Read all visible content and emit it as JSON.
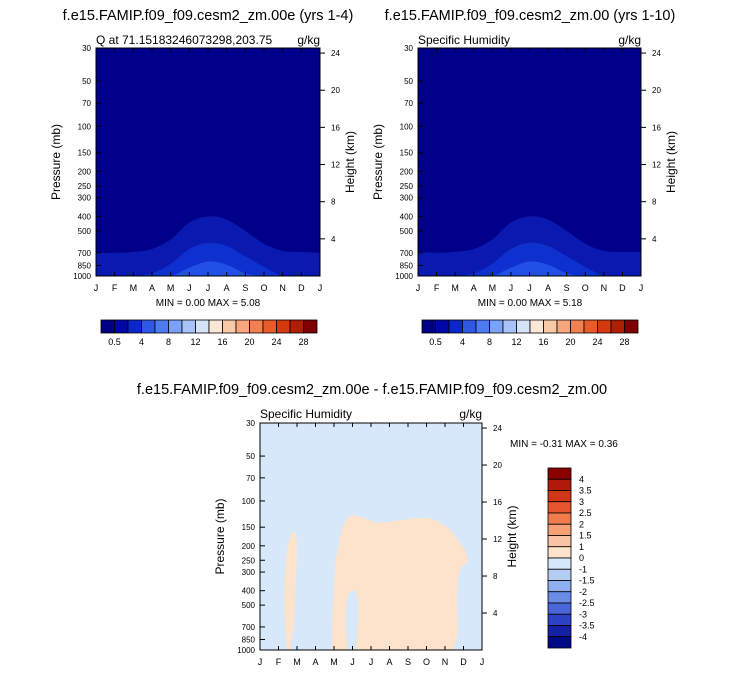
{
  "chart_data": [
    {
      "type": "heatmap",
      "title": "f.e15.FAMIP.f09_f09.cesm2_zm.00e (yrs 1-4)",
      "left_label": "Q at 71.15183246073298,203.75",
      "units": "g/kg",
      "ylabel": "Pressure (mb)",
      "ylabel_right": "Height (km)",
      "stats": "MIN =   0.00 MAX =   5.08",
      "x_ticks": [
        "J",
        "F",
        "M",
        "A",
        "M",
        "J",
        "J",
        "A",
        "S",
        "O",
        "N",
        "D",
        "J"
      ],
      "y_ticks": [
        30,
        50,
        70,
        100,
        150,
        200,
        250,
        300,
        400,
        500,
        700,
        850,
        1000
      ],
      "y_ticks_right": [
        24,
        20,
        16,
        12,
        8,
        4
      ],
      "ylim": [
        1000,
        30
      ],
      "colorbar_labels": [
        "0.5",
        "4",
        "8",
        "12",
        "16",
        "20",
        "24",
        "28"
      ],
      "colorbar_colors": [
        "#000085",
        "#0007a6",
        "#0a27cc",
        "#2e57e6",
        "#4d7cf2",
        "#7aa2f7",
        "#a8c3f7",
        "#d5e3f7",
        "#fbe7d5",
        "#f8c8a7",
        "#f6a57c",
        "#f3804f",
        "#ea5b2a",
        "#d43a10",
        "#b01e04",
        "#7f0000"
      ],
      "contours_from_surface": [
        {
          "level": "0.5",
          "top_mb": [
            700,
            700,
            690,
            660,
            570,
            440,
            400,
            420,
            500,
            610,
            680,
            690,
            700
          ]
        },
        {
          "level": "1",
          "top_mb": [
            1000,
            1000,
            1000,
            960,
            830,
            660,
            600,
            630,
            740,
            870,
            1000,
            1000,
            1000
          ]
        },
        {
          "level": "2",
          "top_mb": [
            1000,
            1000,
            1000,
            1000,
            1000,
            880,
            800,
            840,
            960,
            1000,
            1000,
            1000,
            1000
          ]
        }
      ]
    },
    {
      "type": "heatmap",
      "title": "f.e15.FAMIP.f09_f09.cesm2_zm.00 (yrs 1-10)",
      "left_label": "Specific Humidity",
      "units": "g/kg",
      "ylabel": "Pressure (mb)",
      "ylabel_right": "Height (km)",
      "stats": "MIN =   0.00 MAX =   5.18",
      "x_ticks": [
        "J",
        "F",
        "M",
        "A",
        "M",
        "J",
        "J",
        "A",
        "S",
        "O",
        "N",
        "D",
        "J"
      ],
      "y_ticks": [
        30,
        50,
        70,
        100,
        150,
        200,
        250,
        300,
        400,
        500,
        700,
        850,
        1000
      ],
      "y_ticks_right": [
        24,
        20,
        16,
        12,
        8,
        4
      ],
      "ylim": [
        1000,
        30
      ],
      "colorbar_labels": [
        "0.5",
        "4",
        "8",
        "12",
        "16",
        "20",
        "24",
        "28"
      ],
      "colorbar_colors": [
        "#000085",
        "#0007a6",
        "#0a27cc",
        "#2e57e6",
        "#4d7cf2",
        "#7aa2f7",
        "#a8c3f7",
        "#d5e3f7",
        "#fbe7d5",
        "#f8c8a7",
        "#f6a57c",
        "#f3804f",
        "#ea5b2a",
        "#d43a10",
        "#b01e04",
        "#7f0000"
      ],
      "contours_from_surface": [
        {
          "level": "0.5",
          "top_mb": [
            690,
            700,
            690,
            660,
            570,
            440,
            400,
            420,
            500,
            610,
            680,
            690,
            690
          ]
        },
        {
          "level": "1",
          "top_mb": [
            1000,
            1000,
            1000,
            960,
            830,
            660,
            600,
            630,
            740,
            870,
            1000,
            1000,
            1000
          ]
        },
        {
          "level": "2",
          "top_mb": [
            1000,
            1000,
            1000,
            1000,
            1000,
            880,
            800,
            840,
            960,
            1000,
            1000,
            1000,
            1000
          ]
        }
      ]
    },
    {
      "type": "heatmap",
      "title": "f.e15.FAMIP.f09_f09.cesm2_zm.00e - f.e15.FAMIP.f09_f09.cesm2_zm.00",
      "left_label": "Specific Humidity",
      "units": "g/kg",
      "ylabel": "Pressure (mb)",
      "ylabel_right": "Height (km)",
      "stats": "MIN =  -0.31 MAX =   0.36",
      "x_ticks": [
        "J",
        "F",
        "M",
        "A",
        "M",
        "J",
        "J",
        "A",
        "S",
        "O",
        "N",
        "D",
        "J"
      ],
      "y_ticks": [
        30,
        50,
        70,
        100,
        150,
        200,
        250,
        300,
        400,
        500,
        700,
        850,
        1000
      ],
      "y_ticks_right": [
        24,
        20,
        16,
        12,
        8,
        4
      ],
      "ylim": [
        1000,
        30
      ],
      "colorbar_labels": [
        "4",
        "3.5",
        "3",
        "2.5",
        "2",
        "1.5",
        "1",
        "0",
        "-1",
        "-1.5",
        "-2",
        "-2.5",
        "-3",
        "-3.5",
        "-4"
      ],
      "colorbar_colors": [
        "#8b0000",
        "#b3190b",
        "#d2361a",
        "#e6552d",
        "#f07b4c",
        "#f6a078",
        "#f9c4a5",
        "#fde3cb",
        "#d6e8f9",
        "#b3cdf5",
        "#8fb0f0",
        "#6b8ce6",
        "#4a66d9",
        "#2d42c4",
        "#1420a6",
        "#000a85"
      ],
      "background_color": "#d6e8f9",
      "positive_color": "#fde3cb"
    }
  ]
}
